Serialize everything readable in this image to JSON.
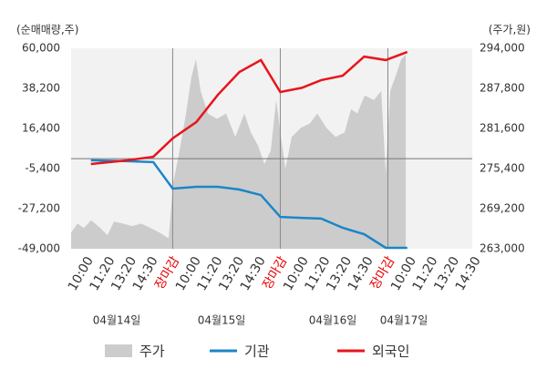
{
  "chart_data": {
    "type": "line",
    "y_axis_label": "(순매매량,주)",
    "y2_axis_label": "(주가,원)",
    "categories": [
      "10:00",
      "11:20",
      "13:20",
      "14:30",
      "장마감",
      "10:00",
      "11:20",
      "13:20",
      "14:30",
      "장마감",
      "10:00",
      "11:20",
      "13:20",
      "14:30",
      "장마감",
      "10:00",
      "11:20",
      "13:20",
      "14:30"
    ],
    "category_colors": [
      "#333333",
      "#333333",
      "#333333",
      "#333333",
      "#e60000",
      "#333333",
      "#333333",
      "#333333",
      "#333333",
      "#e60000",
      "#333333",
      "#333333",
      "#333333",
      "#333333",
      "#e60000",
      "#333333",
      "#333333",
      "#333333",
      "#333333"
    ],
    "dates": [
      "04월14일",
      "04월15일",
      "04월16일",
      "04월17일"
    ],
    "x_gridlines": [
      4,
      9,
      14
    ],
    "xlim": [
      -0.72,
      17.92
    ],
    "ylim": [
      -49000,
      60000
    ],
    "yticks": [
      {
        "value": 60000,
        "label": "60,000"
      },
      {
        "value": 38200,
        "label": "38,200"
      },
      {
        "value": 16400,
        "label": "16,400"
      },
      {
        "value": -5400,
        "label": "-5,400"
      },
      {
        "value": -27200,
        "label": "-27,200"
      },
      {
        "value": -49000,
        "label": "-49,000"
      }
    ],
    "y2lim": [
      263000,
      294000
    ],
    "y2ticks": [
      {
        "value": 294000,
        "label": "294,000"
      },
      {
        "value": 287800,
        "label": "287,800"
      },
      {
        "value": 281600,
        "label": "281,600"
      },
      {
        "value": 275400,
        "label": "275,400"
      },
      {
        "value": 269200,
        "label": "269,200"
      },
      {
        "value": 263000,
        "label": "263,000"
      }
    ],
    "series": [
      {
        "name": "주가",
        "type": "area",
        "axis": "y2",
        "color": "#cccccc",
        "x": [
          -0.72,
          -0.42,
          -0.13,
          0.21,
          0.64,
          0.97,
          1.27,
          1.69,
          2.12,
          2.54,
          2.97,
          3.39,
          3.81,
          4.03,
          4.28,
          4.58,
          4.87,
          5.08,
          5.3,
          5.64,
          6.06,
          6.48,
          6.91,
          7.33,
          7.63,
          7.97,
          8.26,
          8.56,
          8.81,
          9.03,
          9.24,
          9.53,
          9.96,
          10.38,
          10.72,
          11.14,
          11.57,
          11.99,
          12.29,
          12.58,
          12.92,
          13.35,
          13.69,
          13.9,
          14.11,
          14.41,
          14.62,
          14.83
        ],
        "values": [
          265500,
          266900,
          266200,
          267400,
          266200,
          265100,
          267200,
          266900,
          266500,
          266900,
          266200,
          265500,
          264600,
          273300,
          277500,
          283100,
          289500,
          292300,
          287400,
          283900,
          283100,
          283900,
          280300,
          283900,
          281000,
          278900,
          276100,
          278200,
          286000,
          280300,
          275400,
          280300,
          281700,
          282400,
          283900,
          281700,
          280300,
          281000,
          284600,
          283900,
          286700,
          286000,
          287400,
          274700,
          287400,
          290200,
          292300,
          293000
        ]
      },
      {
        "name": "기관",
        "type": "line",
        "color": "#1a86c8",
        "x": [
          0.2,
          1.9,
          3.1,
          4.0,
          5.1,
          6.1,
          7.1,
          8.1,
          9.0,
          10.0,
          10.9,
          11.9,
          12.9,
          13.9,
          14.9
        ],
        "values": [
          -900,
          -1400,
          -1900,
          -16300,
          -15300,
          -15300,
          -16800,
          -19800,
          -31700,
          -32200,
          -32600,
          -37600,
          -41100,
          -48500,
          -48500
        ]
      },
      {
        "name": "외국인",
        "type": "line",
        "color": "#e8141c",
        "x": [
          0.2,
          1.9,
          3.1,
          4.0,
          5.1,
          6.1,
          7.1,
          8.1,
          9.0,
          10.0,
          10.9,
          11.9,
          12.9,
          13.9,
          14.9
        ],
        "values": [
          -2900,
          -900,
          1000,
          11000,
          19900,
          34700,
          47100,
          53600,
          36200,
          38500,
          42700,
          45100,
          55500,
          53600,
          58000
        ]
      }
    ]
  }
}
